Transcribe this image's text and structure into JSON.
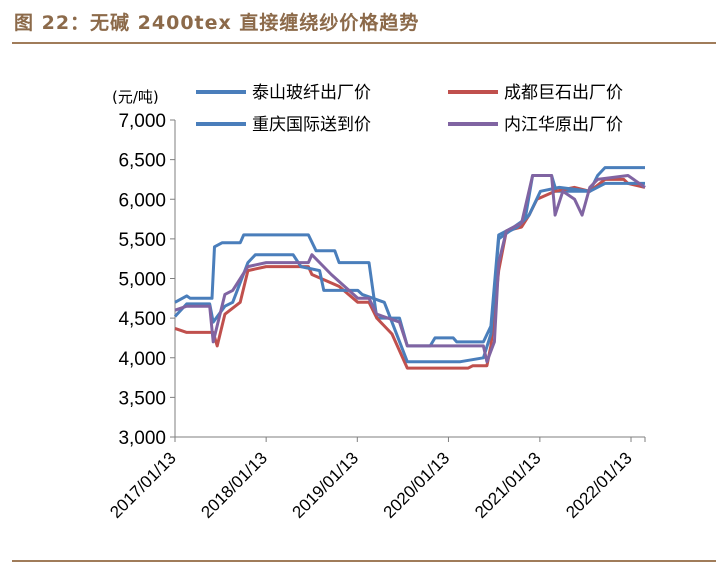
{
  "figure": {
    "title": "图 22：无碱 2400tex 直接缠绕纱价格趋势"
  },
  "chart_data": {
    "type": "line",
    "ylabel": "(元/吨)",
    "ylim": [
      3000,
      7000
    ],
    "yticks": [
      3000,
      3500,
      4000,
      4500,
      5000,
      5500,
      6000,
      6500,
      7000
    ],
    "ytick_labels": [
      "3,000",
      "3,500",
      "4,000",
      "4,500",
      "5,000",
      "5,500",
      "6,000",
      "6,500",
      "7,000"
    ],
    "xlim": [
      "2017-01-13",
      "2022-03-10"
    ],
    "xticks": [
      "2017-01-13",
      "2018-01-13",
      "2019-01-13",
      "2020-01-13",
      "2021-01-13",
      "2022-01-13"
    ],
    "xtick_labels": [
      "2017/01/13",
      "2018/01/13",
      "2019/01/13",
      "2020/01/13",
      "2021/01/13",
      "2022/01/13"
    ],
    "grid": false,
    "legend_position": "top",
    "series": [
      {
        "name": "泰山玻纤出厂价",
        "color": "#4a7ebb",
        "points": [
          [
            "2017-01-13",
            4700
          ],
          [
            "2017-03-01",
            4780
          ],
          [
            "2017-03-15",
            4750
          ],
          [
            "2017-06-10",
            4750
          ],
          [
            "2017-06-20",
            5400
          ],
          [
            "2017-07-20",
            5450
          ],
          [
            "2017-10-01",
            5450
          ],
          [
            "2017-10-15",
            5550
          ],
          [
            "2018-07-01",
            5550
          ],
          [
            "2018-08-01",
            5350
          ],
          [
            "2018-10-15",
            5350
          ],
          [
            "2018-11-01",
            5200
          ],
          [
            "2019-03-01",
            5200
          ],
          [
            "2019-04-01",
            4500
          ],
          [
            "2019-07-01",
            4500
          ],
          [
            "2019-08-01",
            4150
          ],
          [
            "2019-11-01",
            4150
          ],
          [
            "2019-11-20",
            4250
          ],
          [
            "2020-02-01",
            4250
          ],
          [
            "2020-02-15",
            4200
          ],
          [
            "2020-06-01",
            4200
          ],
          [
            "2020-07-01",
            4400
          ],
          [
            "2020-08-01",
            5550
          ],
          [
            "2020-10-01",
            5650
          ],
          [
            "2020-11-15",
            5750
          ],
          [
            "2020-12-15",
            6300
          ],
          [
            "2021-03-01",
            6300
          ],
          [
            "2021-03-20",
            6100
          ],
          [
            "2021-08-01",
            6100
          ],
          [
            "2021-09-01",
            6300
          ],
          [
            "2021-10-01",
            6400
          ],
          [
            "2022-03-10",
            6400
          ]
        ]
      },
      {
        "name": "成都巨石出厂价",
        "color": "#c0504d",
        "points": [
          [
            "2017-01-13",
            4370
          ],
          [
            "2017-03-01",
            4320
          ],
          [
            "2017-06-15",
            4320
          ],
          [
            "2017-07-01",
            4150
          ],
          [
            "2017-08-01",
            4550
          ],
          [
            "2017-10-01",
            4700
          ],
          [
            "2017-11-01",
            5100
          ],
          [
            "2018-01-13",
            5150
          ],
          [
            "2018-07-01",
            5150
          ],
          [
            "2018-07-15",
            5050
          ],
          [
            "2018-11-01",
            4900
          ],
          [
            "2019-01-15",
            4700
          ],
          [
            "2019-03-01",
            4700
          ],
          [
            "2019-04-01",
            4500
          ],
          [
            "2019-06-01",
            4300
          ],
          [
            "2019-08-01",
            3870
          ],
          [
            "2020-04-01",
            3870
          ],
          [
            "2020-04-20",
            3900
          ],
          [
            "2020-06-15",
            3900
          ],
          [
            "2020-07-01",
            4150
          ],
          [
            "2020-08-01",
            5100
          ],
          [
            "2020-09-01",
            5600
          ],
          [
            "2020-11-01",
            5650
          ],
          [
            "2020-12-01",
            5800
          ],
          [
            "2021-01-01",
            6000
          ],
          [
            "2021-03-15",
            6100
          ],
          [
            "2021-06-01",
            6150
          ],
          [
            "2021-08-01",
            6100
          ],
          [
            "2021-10-01",
            6250
          ],
          [
            "2021-12-15",
            6250
          ],
          [
            "2022-01-01",
            6200
          ],
          [
            "2022-03-10",
            6150
          ]
        ]
      },
      {
        "name": "重庆国际送到价",
        "color": "#4a7ebb",
        "points": [
          [
            "2017-01-13",
            4520
          ],
          [
            "2017-03-01",
            4680
          ],
          [
            "2017-06-01",
            4680
          ],
          [
            "2017-06-15",
            4450
          ],
          [
            "2017-08-01",
            4650
          ],
          [
            "2017-09-01",
            4700
          ],
          [
            "2017-11-01",
            5200
          ],
          [
            "2017-12-01",
            5300
          ],
          [
            "2018-05-01",
            5300
          ],
          [
            "2018-06-01",
            5150
          ],
          [
            "2018-08-15",
            5100
          ],
          [
            "2018-09-01",
            4850
          ],
          [
            "2019-01-15",
            4850
          ],
          [
            "2019-02-01",
            4800
          ],
          [
            "2019-05-01",
            4700
          ],
          [
            "2019-08-01",
            3950
          ],
          [
            "2020-03-01",
            3950
          ],
          [
            "2020-06-01",
            4000
          ],
          [
            "2020-07-01",
            4300
          ],
          [
            "2020-08-01",
            5500
          ],
          [
            "2020-09-15",
            5600
          ],
          [
            "2020-10-15",
            5650
          ],
          [
            "2020-12-01",
            5800
          ],
          [
            "2021-01-15",
            6100
          ],
          [
            "2021-04-01",
            6150
          ],
          [
            "2021-08-01",
            6100
          ],
          [
            "2021-10-01",
            6200
          ],
          [
            "2022-03-10",
            6200
          ]
        ]
      },
      {
        "name": "内江华原出厂价",
        "color": "#8064a2",
        "points": [
          [
            "2017-01-13",
            4600
          ],
          [
            "2017-03-01",
            4650
          ],
          [
            "2017-06-01",
            4650
          ],
          [
            "2017-06-15",
            4200
          ],
          [
            "2017-08-01",
            4800
          ],
          [
            "2017-09-01",
            4850
          ],
          [
            "2017-11-01",
            5150
          ],
          [
            "2018-01-13",
            5200
          ],
          [
            "2018-07-01",
            5200
          ],
          [
            "2018-07-15",
            5300
          ],
          [
            "2018-10-01",
            5050
          ],
          [
            "2019-01-15",
            4750
          ],
          [
            "2019-03-01",
            4750
          ],
          [
            "2019-04-01",
            4550
          ],
          [
            "2019-07-01",
            4450
          ],
          [
            "2019-08-01",
            4150
          ],
          [
            "2020-06-01",
            4150
          ],
          [
            "2020-06-15",
            3950
          ],
          [
            "2020-07-15",
            4200
          ],
          [
            "2020-08-01",
            5200
          ],
          [
            "2020-09-01",
            5600
          ],
          [
            "2020-11-01",
            5700
          ],
          [
            "2020-12-15",
            6300
          ],
          [
            "2021-03-01",
            6300
          ],
          [
            "2021-03-15",
            5800
          ],
          [
            "2021-04-15",
            6100
          ],
          [
            "2021-06-01",
            6000
          ],
          [
            "2021-07-01",
            5800
          ],
          [
            "2021-08-01",
            6150
          ],
          [
            "2021-09-01",
            6250
          ],
          [
            "2022-01-01",
            6300
          ],
          [
            "2022-03-10",
            6150
          ]
        ]
      }
    ]
  }
}
